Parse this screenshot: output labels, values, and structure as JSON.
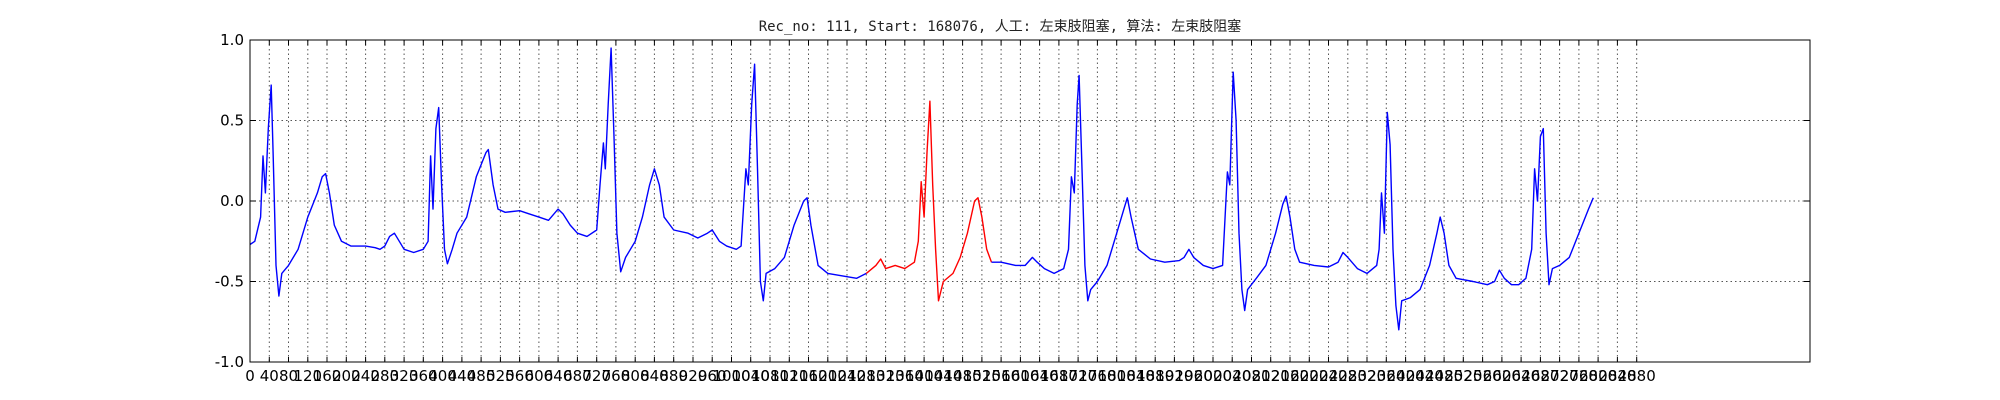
{
  "chart_data": {
    "type": "line",
    "title": "Rec_no: 111, Start: 168076, 人工: 左束肢阻塞, 算法: 左束肢阻塞",
    "xlabel": "",
    "ylabel": "",
    "xlim": [
      0,
      3240
    ],
    "ylim": [
      -1.0,
      1.0
    ],
    "x_tick_step": 40,
    "x_ticks_end": 2880,
    "y_ticks": [
      1.0,
      0.5,
      0.0,
      -0.5,
      -1.0
    ],
    "y_tick_labels": [
      "1.0",
      "0.5",
      "0.0",
      "-0.5",
      "-1.0"
    ],
    "grid": true,
    "legend": "none",
    "signal_length": 2880,
    "series": [
      {
        "color": "#0000ff",
        "points": [
          [
            0,
            -0.27
          ],
          [
            10,
            -0.25
          ],
          [
            22,
            -0.1
          ],
          [
            27,
            0.28
          ],
          [
            32,
            0.05
          ],
          [
            38,
            0.45
          ],
          [
            44,
            0.72
          ],
          [
            48,
            0.3
          ],
          [
            54,
            -0.4
          ],
          [
            60,
            -0.59
          ],
          [
            66,
            -0.45
          ],
          [
            80,
            -0.4
          ],
          [
            100,
            -0.3
          ],
          [
            120,
            -0.1
          ],
          [
            140,
            0.05
          ],
          [
            150,
            0.15
          ],
          [
            157,
            0.17
          ],
          [
            165,
            0.05
          ],
          [
            175,
            -0.15
          ],
          [
            190,
            -0.25
          ],
          [
            210,
            -0.28
          ],
          [
            240,
            -0.28
          ],
          [
            260,
            -0.29
          ],
          [
            270,
            -0.3
          ],
          [
            280,
            -0.28
          ],
          [
            290,
            -0.22
          ],
          [
            300,
            -0.2
          ],
          [
            310,
            -0.25
          ],
          [
            320,
            -0.3
          ],
          [
            340,
            -0.32
          ],
          [
            360,
            -0.3
          ],
          [
            370,
            -0.25
          ],
          [
            375,
            0.28
          ],
          [
            380,
            -0.05
          ],
          [
            386,
            0.45
          ],
          [
            392,
            0.58
          ],
          [
            398,
            0.1
          ],
          [
            404,
            -0.3
          ],
          [
            410,
            -0.39
          ],
          [
            420,
            -0.3
          ],
          [
            430,
            -0.2
          ],
          [
            450,
            -0.1
          ],
          [
            470,
            0.15
          ],
          [
            490,
            0.3
          ],
          [
            495,
            0.32
          ],
          [
            505,
            0.1
          ],
          [
            515,
            -0.05
          ],
          [
            530,
            -0.07
          ],
          [
            560,
            -0.06
          ],
          [
            580,
            -0.08
          ],
          [
            600,
            -0.1
          ],
          [
            620,
            -0.12
          ],
          [
            640,
            -0.05
          ],
          [
            650,
            -0.08
          ],
          [
            665,
            -0.15
          ],
          [
            680,
            -0.2
          ],
          [
            700,
            -0.22
          ],
          [
            720,
            -0.18
          ],
          [
            727,
            0.1
          ],
          [
            734,
            0.36
          ],
          [
            738,
            0.2
          ],
          [
            744,
            0.6
          ],
          [
            750,
            0.95
          ],
          [
            756,
            0.4
          ],
          [
            762,
            -0.2
          ],
          [
            770,
            -0.44
          ],
          [
            780,
            -0.35
          ],
          [
            800,
            -0.25
          ],
          [
            815,
            -0.1
          ],
          [
            830,
            0.1
          ],
          [
            840,
            0.2
          ],
          [
            850,
            0.1
          ],
          [
            860,
            -0.1
          ],
          [
            880,
            -0.18
          ],
          [
            910,
            -0.2
          ],
          [
            930,
            -0.23
          ],
          [
            950,
            -0.2
          ],
          [
            960,
            -0.18
          ],
          [
            975,
            -0.25
          ],
          [
            990,
            -0.28
          ],
          [
            1010,
            -0.3
          ],
          [
            1020,
            -0.28
          ],
          [
            1030,
            0.2
          ],
          [
            1035,
            0.1
          ],
          [
            1042,
            0.6
          ],
          [
            1048,
            0.85
          ],
          [
            1054,
            0.2
          ],
          [
            1060,
            -0.5
          ],
          [
            1066,
            -0.62
          ],
          [
            1072,
            -0.45
          ],
          [
            1090,
            -0.42
          ],
          [
            1110,
            -0.35
          ],
          [
            1130,
            -0.15
          ],
          [
            1150,
            0.0
          ],
          [
            1157,
            0.02
          ],
          [
            1165,
            -0.15
          ],
          [
            1180,
            -0.4
          ],
          [
            1200,
            -0.45
          ],
          [
            1240,
            -0.47
          ],
          [
            1260,
            -0.48
          ],
          [
            1280,
            -0.45
          ]
        ]
      },
      {
        "color": "#ff0000",
        "points": [
          [
            1280,
            -0.45
          ],
          [
            1300,
            -0.4
          ],
          [
            1310,
            -0.36
          ],
          [
            1320,
            -0.42
          ],
          [
            1340,
            -0.4
          ],
          [
            1360,
            -0.42
          ],
          [
            1380,
            -0.38
          ],
          [
            1388,
            -0.25
          ],
          [
            1394,
            0.12
          ],
          [
            1400,
            -0.1
          ],
          [
            1406,
            0.3
          ],
          [
            1412,
            0.62
          ],
          [
            1418,
            0.1
          ],
          [
            1424,
            -0.3
          ],
          [
            1430,
            -0.62
          ],
          [
            1440,
            -0.5
          ],
          [
            1460,
            -0.45
          ],
          [
            1475,
            -0.35
          ],
          [
            1490,
            -0.2
          ],
          [
            1505,
            0.0
          ],
          [
            1512,
            0.02
          ],
          [
            1520,
            -0.1
          ],
          [
            1530,
            -0.3
          ],
          [
            1540,
            -0.38
          ]
        ]
      },
      {
        "color": "#0000ff",
        "points": [
          [
            1540,
            -0.38
          ],
          [
            1560,
            -0.38
          ],
          [
            1590,
            -0.4
          ],
          [
            1610,
            -0.4
          ],
          [
            1625,
            -0.35
          ],
          [
            1635,
            -0.38
          ],
          [
            1650,
            -0.42
          ],
          [
            1670,
            -0.45
          ],
          [
            1690,
            -0.42
          ],
          [
            1700,
            -0.3
          ],
          [
            1706,
            0.15
          ],
          [
            1712,
            0.05
          ],
          [
            1718,
            0.6
          ],
          [
            1722,
            0.78
          ],
          [
            1728,
            0.2
          ],
          [
            1734,
            -0.4
          ],
          [
            1740,
            -0.62
          ],
          [
            1746,
            -0.55
          ],
          [
            1760,
            -0.5
          ],
          [
            1780,
            -0.4
          ],
          [
            1800,
            -0.2
          ],
          [
            1815,
            -0.05
          ],
          [
            1822,
            0.02
          ],
          [
            1830,
            -0.1
          ],
          [
            1845,
            -0.3
          ],
          [
            1870,
            -0.36
          ],
          [
            1900,
            -0.38
          ],
          [
            1930,
            -0.37
          ],
          [
            1940,
            -0.35
          ],
          [
            1950,
            -0.3
          ],
          [
            1960,
            -0.35
          ],
          [
            1980,
            -0.4
          ],
          [
            2000,
            -0.42
          ],
          [
            2020,
            -0.4
          ],
          [
            2030,
            0.18
          ],
          [
            2035,
            0.1
          ],
          [
            2042,
            0.8
          ],
          [
            2048,
            0.5
          ],
          [
            2054,
            -0.2
          ],
          [
            2060,
            -0.55
          ],
          [
            2066,
            -0.68
          ],
          [
            2072,
            -0.55
          ],
          [
            2090,
            -0.48
          ],
          [
            2110,
            -0.4
          ],
          [
            2130,
            -0.2
          ],
          [
            2145,
            -0.02
          ],
          [
            2152,
            0.03
          ],
          [
            2160,
            -0.1
          ],
          [
            2170,
            -0.3
          ],
          [
            2180,
            -0.38
          ],
          [
            2210,
            -0.4
          ],
          [
            2240,
            -0.41
          ],
          [
            2260,
            -0.38
          ],
          [
            2270,
            -0.32
          ],
          [
            2280,
            -0.35
          ],
          [
            2300,
            -0.42
          ],
          [
            2320,
            -0.45
          ],
          [
            2340,
            -0.4
          ],
          [
            2345,
            -0.3
          ],
          [
            2350,
            0.05
          ],
          [
            2356,
            -0.2
          ],
          [
            2362,
            0.55
          ],
          [
            2368,
            0.35
          ],
          [
            2374,
            -0.3
          ],
          [
            2380,
            -0.65
          ],
          [
            2386,
            -0.8
          ],
          [
            2392,
            -0.62
          ],
          [
            2410,
            -0.6
          ],
          [
            2430,
            -0.55
          ],
          [
            2450,
            -0.4
          ],
          [
            2465,
            -0.2
          ],
          [
            2472,
            -0.1
          ],
          [
            2480,
            -0.2
          ],
          [
            2490,
            -0.4
          ],
          [
            2505,
            -0.48
          ],
          [
            2540,
            -0.5
          ],
          [
            2570,
            -0.52
          ],
          [
            2585,
            -0.5
          ],
          [
            2595,
            -0.43
          ],
          [
            2605,
            -0.48
          ],
          [
            2620,
            -0.52
          ],
          [
            2635,
            -0.52
          ],
          [
            2650,
            -0.48
          ],
          [
            2662,
            -0.3
          ],
          [
            2668,
            0.2
          ],
          [
            2674,
            0.0
          ],
          [
            2680,
            0.4
          ],
          [
            2686,
            0.45
          ],
          [
            2692,
            -0.2
          ],
          [
            2698,
            -0.52
          ],
          [
            2705,
            -0.42
          ],
          [
            2720,
            -0.4
          ],
          [
            2740,
            -0.35
          ],
          [
            2760,
            -0.2
          ],
          [
            2780,
            -0.05
          ],
          [
            2790,
            0.02
          ]
        ]
      }
    ]
  }
}
